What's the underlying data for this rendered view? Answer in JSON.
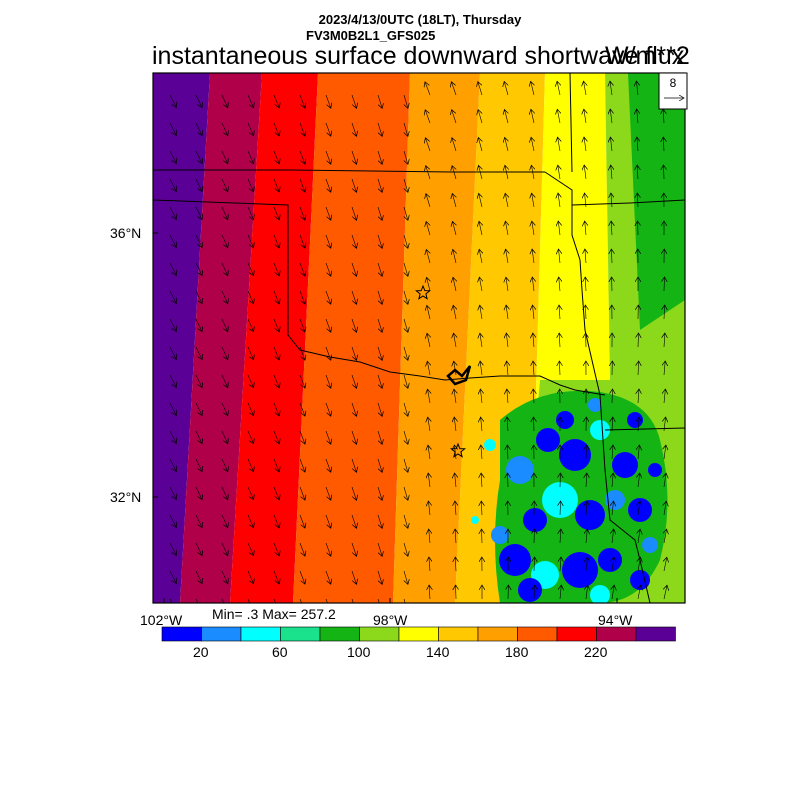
{
  "header": {
    "datetime": "2023/4/13/0UTC (18LT), Thursday",
    "model": "FV3M0B2L1_GFS025",
    "variable": "instantaneous surface downward shortwave flux",
    "units": "W/m**2"
  },
  "map": {
    "lat_labels": [
      "36°N",
      "32°N"
    ],
    "lon_labels": [
      "102°W",
      "98°W",
      "94°W"
    ],
    "city_markers": [
      "oklahoma-city",
      "dallas"
    ]
  },
  "vector_reference": {
    "magnitude": "8"
  },
  "stats": {
    "text": "Min= .3 Max= 257.2"
  },
  "colorbar": {
    "colors": [
      "#0000ff",
      "#1a8cff",
      "#00ffff",
      "#1ae28c",
      "#13b413",
      "#8cd91c",
      "#ffff00",
      "#ffc800",
      "#ffa000",
      "#ff5a00",
      "#ff0000",
      "#b0004a",
      "#5a0096"
    ],
    "tick_labels": [
      "20",
      "60",
      "100",
      "140",
      "180",
      "220"
    ]
  }
}
